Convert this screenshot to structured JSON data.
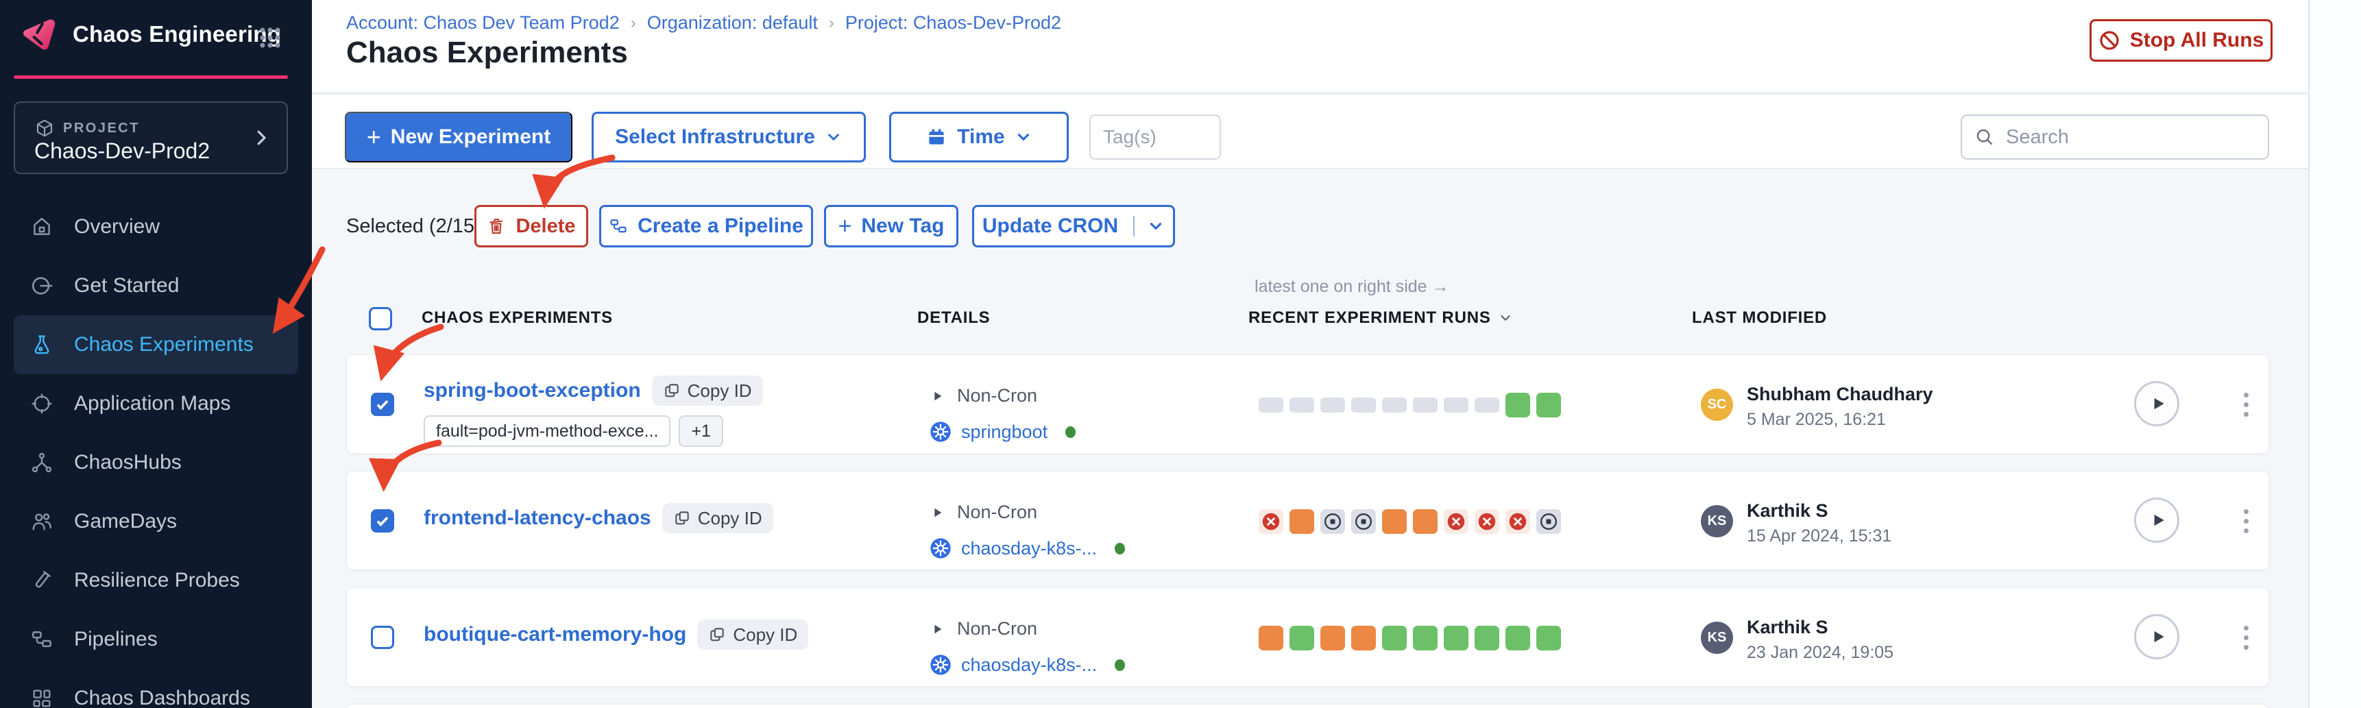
{
  "app": {
    "name": "Chaos Engineering"
  },
  "sidebar": {
    "project_label": "PROJECT",
    "project_name": "Chaos-Dev-Prod2",
    "items": [
      {
        "label": "Overview",
        "icon": "home-icon",
        "active": false
      },
      {
        "label": "Get Started",
        "icon": "get-started-icon",
        "active": false
      },
      {
        "label": "Chaos Experiments",
        "icon": "flask-icon",
        "active": true
      },
      {
        "label": "Application Maps",
        "icon": "crosshair-icon",
        "active": false
      },
      {
        "label": "ChaosHubs",
        "icon": "network-icon",
        "active": false
      },
      {
        "label": "GameDays",
        "icon": "people-icon",
        "active": false
      },
      {
        "label": "Resilience Probes",
        "icon": "test-tube-icon",
        "active": false
      },
      {
        "label": "Pipelines",
        "icon": "pipeline-icon",
        "active": false
      },
      {
        "label": "Chaos Dashboards",
        "icon": "dashboard-icon",
        "active": false
      }
    ]
  },
  "header": {
    "breadcrumb": [
      "Account: Chaos Dev Team Prod2",
      "Organization: default",
      "Project: Chaos-Dev-Prod2"
    ],
    "title": "Chaos Experiments",
    "stop_all_runs": "Stop All Runs"
  },
  "toolbar": {
    "new_experiment": "New Experiment",
    "select_infrastructure": "Select Infrastructure",
    "time": "Time",
    "tags_placeholder": "Tag(s)",
    "search_placeholder": "Search"
  },
  "selection_bar": {
    "selected": "Selected (2/15)",
    "delete": "Delete",
    "create_pipeline": "Create a Pipeline",
    "new_tag": "New Tag",
    "update_cron": "Update CRON"
  },
  "table": {
    "runs_note": "latest one on right side →",
    "columns": {
      "experiments": "CHAOS EXPERIMENTS",
      "details": "DETAILS",
      "recent_runs": "RECENT EXPERIMENT RUNS",
      "last_modified": "LAST MODIFIED"
    },
    "rows": [
      {
        "name": "spring-boot-exception",
        "copy_id": "Copy ID",
        "checked": true,
        "tags": [
          "fault=pod-jvm-method-exce...",
          "+1"
        ],
        "schedule": "Non-Cron",
        "infrastructure": "springboot",
        "runs": [
          "none",
          "none",
          "none",
          "none",
          "none",
          "none",
          "none",
          "none",
          "passed",
          "passed"
        ],
        "modified_by": "Shubham Chaudhary",
        "modified_on": "5 Mar 2025, 16:21",
        "avatar_initials": "SC",
        "avatar_color": "#edb23c"
      },
      {
        "name": "frontend-latency-chaos",
        "copy_id": "Copy ID",
        "checked": true,
        "tags": [],
        "schedule": "Non-Cron",
        "infrastructure": "chaosday-k8s-...",
        "runs": [
          "failed",
          "running",
          "stopped",
          "stopped",
          "running",
          "running",
          "failed",
          "failed",
          "failed",
          "stopped"
        ],
        "modified_by": "Karthik S",
        "modified_on": "15 Apr 2024, 15:31",
        "avatar_initials": "KS",
        "avatar_color": "#575d72"
      },
      {
        "name": "boutique-cart-memory-hog",
        "copy_id": "Copy ID",
        "checked": false,
        "tags": [],
        "schedule": "Non-Cron",
        "infrastructure": "chaosday-k8s-...",
        "runs": [
          "running",
          "passed",
          "running",
          "running",
          "passed",
          "passed",
          "passed",
          "passed",
          "passed",
          "passed"
        ],
        "modified_by": "Karthik S",
        "modified_on": "23 Jan 2024, 19:05",
        "avatar_initials": "KS",
        "avatar_color": "#575d72"
      }
    ]
  },
  "colors": {
    "primary_blue": "#2f6cd4",
    "link_blue": "#2e6cd1",
    "danger_red": "#b6281c",
    "annotation_red": "#e8432b",
    "accent_pink": "#f22e6c",
    "active_nav_blue": "#3fb8f6",
    "sidebar_bg": "#0e1a2c",
    "run_passed": "#6cc067",
    "run_running": "#ec8843",
    "run_failed": "#ce3b2e",
    "run_failed_bg": "#fbe9e4",
    "run_stopped_bg": "#dcdde6",
    "run_none": "#dde0e9",
    "healthy_green": "#3e8e3e",
    "avatar_orange": "#edb23c",
    "avatar_slate": "#575d72"
  }
}
